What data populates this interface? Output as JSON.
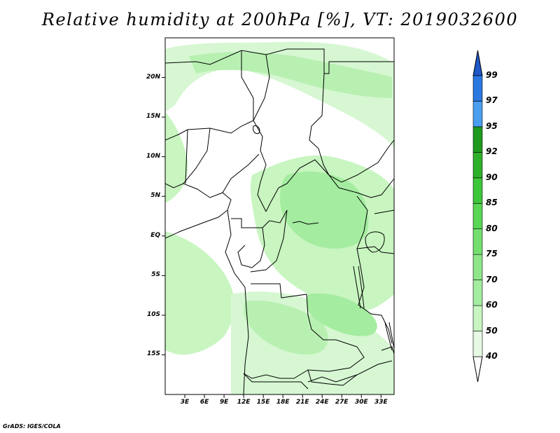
{
  "title": "Relative humidity at 200hPa [%], VT: 2019032600",
  "map": {
    "region": "Central Africa",
    "variable": "Relative humidity",
    "level": "200hPa",
    "units": "%",
    "valid_time": "2019032600",
    "lon_range": [
      0,
      35
    ],
    "lat_range": [
      -20,
      25
    ],
    "lat_ticks": [
      {
        "value": 20,
        "label": "20N"
      },
      {
        "value": 15,
        "label": "15N"
      },
      {
        "value": 10,
        "label": "10N"
      },
      {
        "value": 5,
        "label": "5N"
      },
      {
        "value": 0,
        "label": "EQ"
      },
      {
        "value": -5,
        "label": "5S"
      },
      {
        "value": -10,
        "label": "10S"
      },
      {
        "value": -15,
        "label": "15S"
      }
    ],
    "lon_ticks": [
      {
        "value": 3,
        "label": "3E"
      },
      {
        "value": 6,
        "label": "6E"
      },
      {
        "value": 9,
        "label": "9E"
      },
      {
        "value": 12,
        "label": "12E"
      },
      {
        "value": 15,
        "label": "15E"
      },
      {
        "value": 18,
        "label": "18E"
      },
      {
        "value": 21,
        "label": "21E"
      },
      {
        "value": 24,
        "label": "24E"
      },
      {
        "value": 27,
        "label": "27E"
      },
      {
        "value": 30,
        "label": "30E"
      },
      {
        "value": 33,
        "label": "33E"
      }
    ]
  },
  "colorbar": {
    "levels": [
      "40",
      "50",
      "60",
      "70",
      "75",
      "80",
      "85",
      "90",
      "92",
      "95",
      "97",
      "99"
    ],
    "fill_colors": [
      "#e6fae3",
      "#c8f5c0",
      "#a4eca0",
      "#8ee68a",
      "#74df6f",
      "#5ad655",
      "#3ec63a",
      "#2fb02b",
      "#1f9a1f",
      "#4a9ef0",
      "#2a78e0",
      "#1f56c8"
    ]
  },
  "credit": "GrADS: IGES/COLA"
}
